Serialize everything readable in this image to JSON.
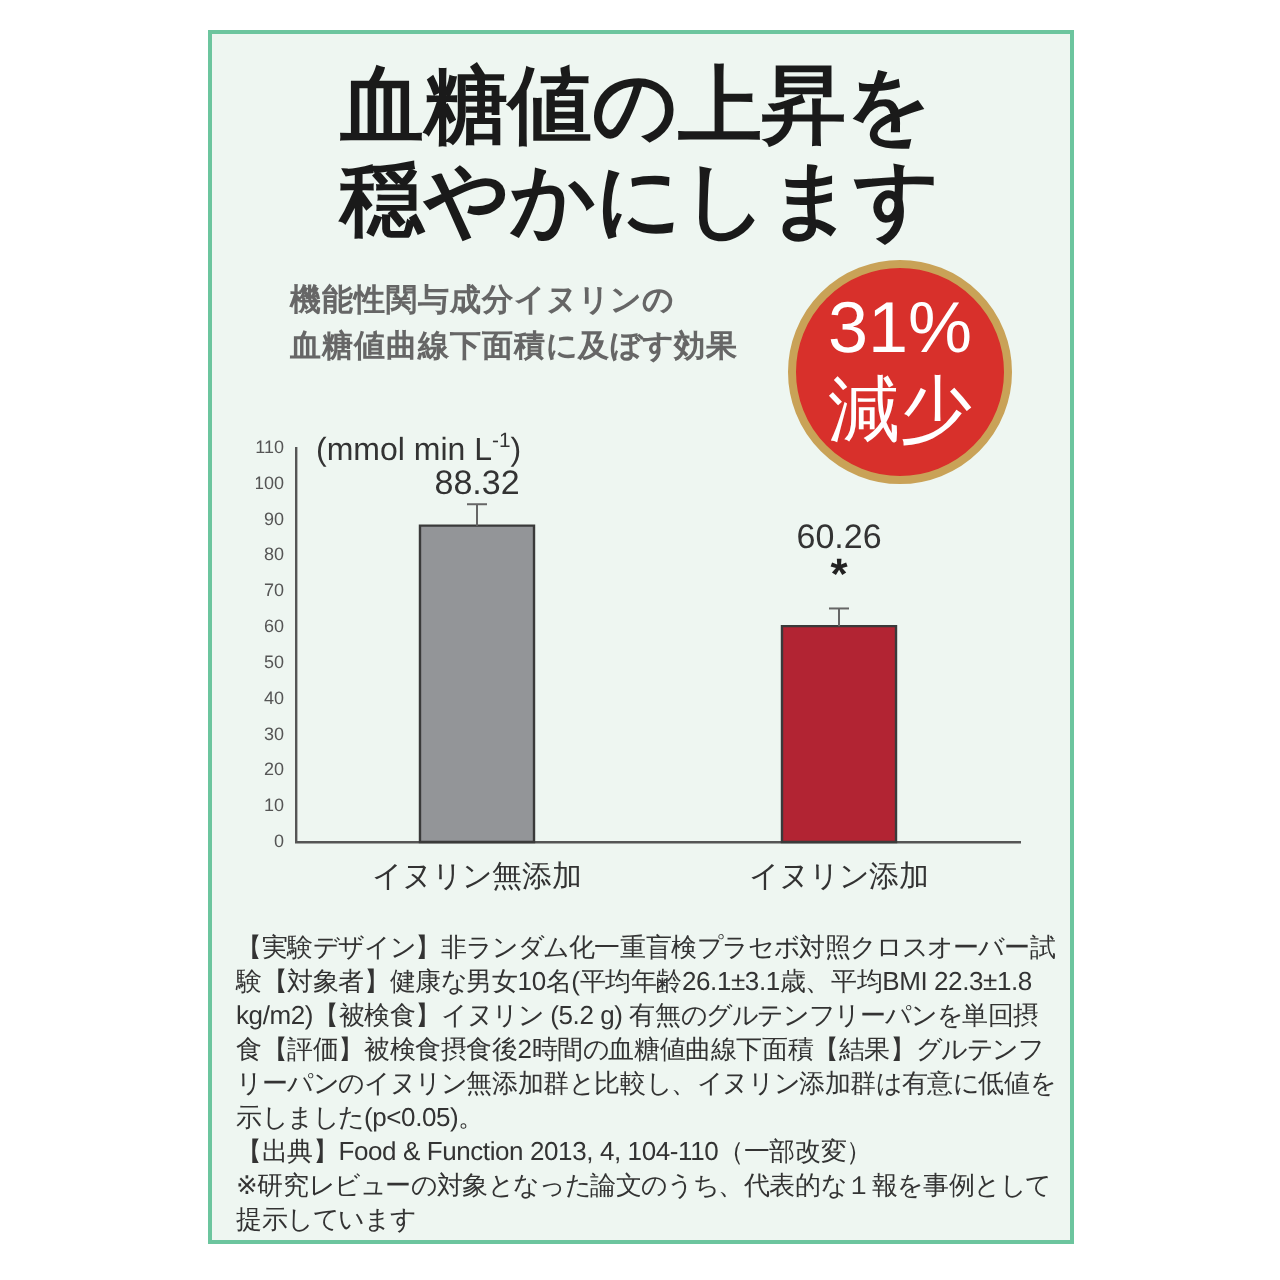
{
  "chart_data": {
    "type": "bar",
    "title": "血糖値の上昇を穏やかにします",
    "subtitle": "機能性関与成分イヌリンの血糖値曲線下面積に及ぼす効果",
    "ylabel": "(mmol min L$^{-1}$)",
    "categories": [
      "イヌリン無添加",
      "イヌリン添加"
    ],
    "values": [
      88.32,
      60.26
    ],
    "colors": [
      "#939598",
      "#b22433"
    ],
    "errors": [
      [
        88.32,
        94.3
      ],
      [
        60.26,
        65.2
      ]
    ],
    "data_labels": true,
    "ylim": [
      0,
      110
    ],
    "yticks": [
      0,
      10,
      20,
      30,
      40,
      50,
      60,
      70,
      80,
      90,
      100,
      110
    ],
    "annotations": [
      "31%\n減少",
      {
        "text": "*",
        "x": "イヌリン添加",
        "y": 65.2
      },
      "【実験デザイン】非ランダム化一重盲検プラセボ対照クロスオーバー試験【対象者】健康な男女10名(平均年齢26.1±3.1歳、平均BMI 22.3±1.8 kg/m2)【被検食】イヌリン (5.2 g) 有無のグルテンフリーパンを単回摂食【評価】被検食摂食後2時間の血糖値曲線下面積【結果】グルテンフリーパンのイヌリン無添加群と比較し、イヌリン添加群は有意に低値を示しました(p<0.05)。",
      "【出典】Food & Function 2013, 4, 104-110（一部改変）",
      "※研究レビューの対象となった論文のうち、代表的な１報を事例として提示しています"
    ]
  }
}
